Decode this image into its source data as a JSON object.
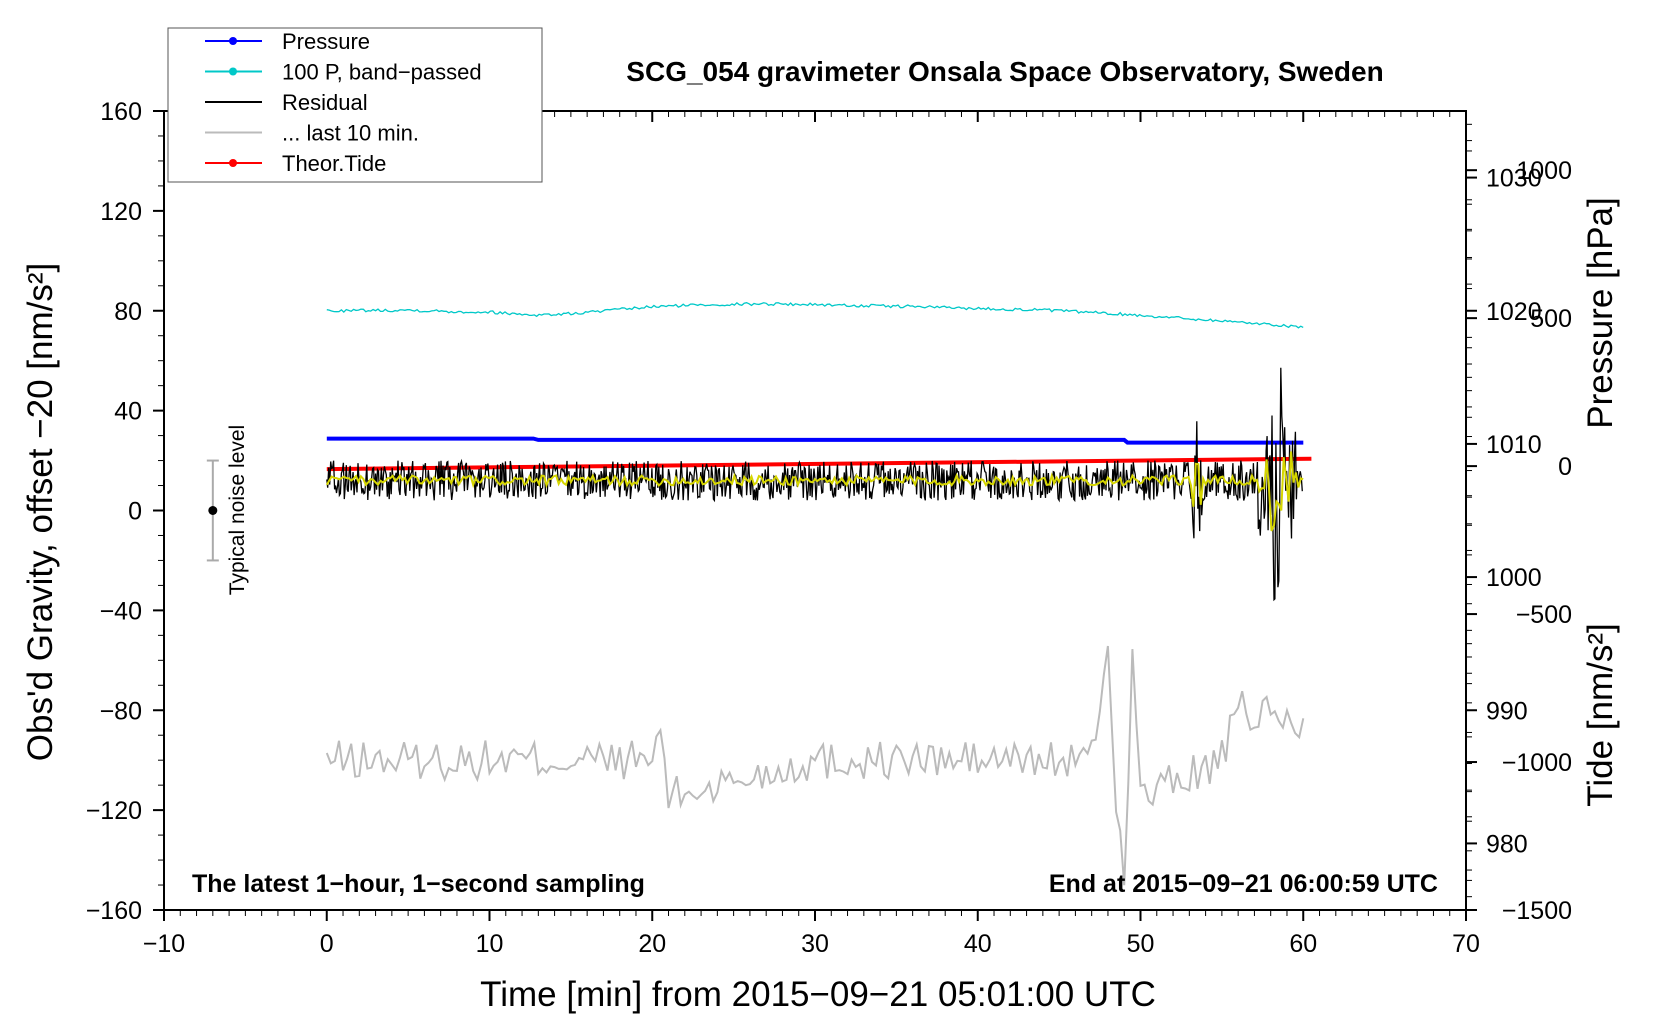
{
  "chart_data": {
    "type": "line",
    "title": "SCG_054 gravimeter Onsala Space Observatory, Sweden",
    "xlabel": "Time [min] from 2015−09−21 05:01:00 UTC",
    "ylabel_left": "Obs'd Gravity, offset −20 [nm/s²]",
    "ylabel_pressure": "Pressure [hPa]",
    "ylabel_tide": "Tide [nm/s²]",
    "xlim": [
      -10,
      70
    ],
    "ylim_left": [
      -160,
      160
    ],
    "pressure_range": [
      975,
      1035
    ],
    "tide_range": [
      -1500,
      1200
    ],
    "x_ticks": [
      "−10",
      "0",
      "10",
      "20",
      "30",
      "40",
      "50",
      "60",
      "70"
    ],
    "y_ticks_left": [
      "−160",
      "−120",
      "−80",
      "−40",
      "0",
      "40",
      "80",
      "120",
      "160"
    ],
    "pressure_ticks": [
      "980",
      "990",
      "1000",
      "1010",
      "1020",
      "1030"
    ],
    "tide_ticks": [
      "−1500",
      "−1000",
      "−500",
      "0",
      "500",
      "1000"
    ],
    "grid": false,
    "legend_position": "top-left, outside",
    "legend": [
      {
        "label": "Pressure",
        "color": "#0000ff",
        "style": "line-dot"
      },
      {
        "label": "100 P, band−passed",
        "color": "#00c8c8",
        "style": "line-dot"
      },
      {
        "label": "Residual",
        "color": "#000000",
        "style": "line"
      },
      {
        "label": "... last 10 min.",
        "color": "#bbbbbb",
        "style": "line"
      },
      {
        "label": "Theor.Tide",
        "color": "#ff0000",
        "style": "line-dot"
      }
    ],
    "annotations": {
      "bottom_left": "The latest 1−hour, 1−second sampling",
      "bottom_right": "End at 2015−09−21 06:00:59 UTC",
      "noise_label": "Typical noise level"
    },
    "noise_bar": {
      "x": -7,
      "center": 0,
      "half_range": 20
    },
    "series": [
      {
        "name": "Pressure",
        "axis": "pressure",
        "color": "#0000ff",
        "x": [
          0,
          12.7,
          13,
          49,
          49.2,
          60
        ],
        "y": [
          1010.4,
          1010.4,
          1010.3,
          1010.3,
          1010.1,
          1010.1
        ]
      },
      {
        "name": "100 P, band−passed",
        "axis": "left",
        "color": "#00c8c8",
        "x": [
          0,
          5,
          8,
          10,
          12,
          13,
          15,
          18,
          20,
          23,
          27,
          30,
          33,
          36,
          40,
          44,
          48,
          52,
          56,
          60
        ],
        "y": [
          80,
          80.3,
          79.6,
          79.5,
          78.6,
          78.3,
          78.8,
          80.5,
          81.6,
          82.4,
          82.8,
          82.5,
          82,
          81.7,
          80.9,
          80.3,
          79,
          77.3,
          75.5,
          73.5
        ]
      },
      {
        "name": "Residual",
        "axis": "left",
        "color": "#000000",
        "x": [
          0,
          10,
          20,
          30,
          40,
          50,
          53.5,
          54,
          56,
          57.5,
          58.2,
          58.4,
          59,
          60
        ],
        "y": [
          12,
          12,
          12,
          12,
          12,
          12,
          12,
          12,
          12,
          12,
          12,
          12,
          12,
          12
        ]
      },
      {
        "name": "... last 10 min.",
        "axis": "left",
        "color": "#bbbbbb",
        "x": [
          0,
          10,
          20,
          20.5,
          21,
          30,
          40,
          47,
          48,
          48.5,
          49,
          49.5,
          50,
          55,
          56,
          60
        ],
        "y": [
          -100,
          -100,
          -100,
          -87,
          -115,
          -100,
          -100,
          -100,
          -52,
          -120,
          -145,
          -58,
          -115,
          -100,
          -80,
          -86
        ]
      },
      {
        "name": "Theor.Tide",
        "axis": "tide",
        "color": "#ff0000",
        "x": [
          0,
          60.5
        ],
        "y": [
          -10,
          25
        ]
      }
    ]
  }
}
